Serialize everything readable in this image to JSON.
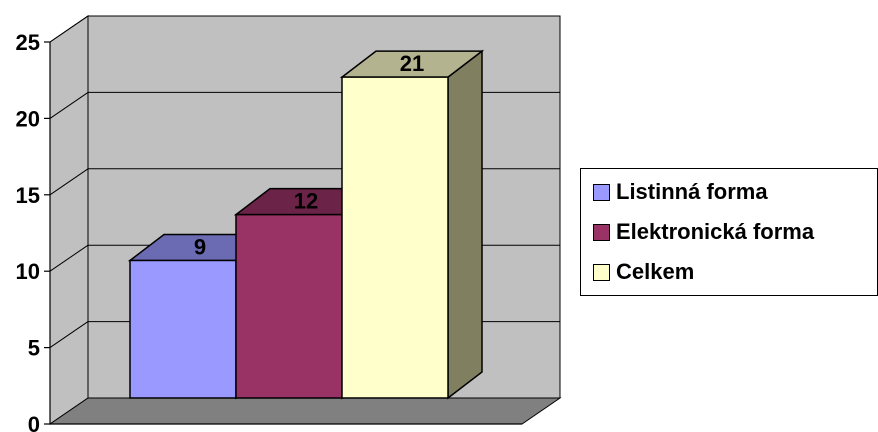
{
  "chart_data": {
    "type": "bar",
    "style": "3d",
    "categories": [
      ""
    ],
    "series": [
      {
        "name": "Listinná forma",
        "values": [
          9
        ],
        "color": "#9999ff",
        "top_color": "#6b6bb3",
        "side_color": "#5c5c99"
      },
      {
        "name": "Elektronická forma",
        "values": [
          12
        ],
        "color": "#993366",
        "top_color": "#6b2447",
        "side_color": "#5c1f3d"
      },
      {
        "name": "Celkem",
        "values": [
          21
        ],
        "color": "#ffffcc",
        "top_color": "#b3b38f",
        "side_color": "#808060"
      }
    ],
    "data_labels": [
      "9",
      "12",
      "21"
    ],
    "title": "",
    "xlabel": "",
    "ylabel": "",
    "ylim": [
      0,
      25
    ],
    "yticks": [
      0,
      5,
      10,
      15,
      20,
      25
    ],
    "ytick_labels": [
      "0",
      "5",
      "10",
      "15",
      "20",
      "25"
    ],
    "grid": true,
    "legend_position": "right",
    "wall_color": "#c0c0c0",
    "floor_color": "#808080"
  }
}
